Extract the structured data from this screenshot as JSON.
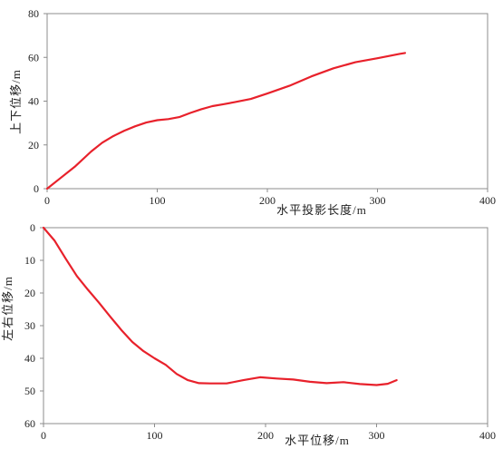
{
  "chart_data": [
    {
      "type": "line",
      "title": "",
      "xlabel": "水平投影长度/m",
      "ylabel": "上下位移/m",
      "xlim": [
        0,
        400
      ],
      "ylim": [
        0,
        80
      ],
      "xticks": [
        0,
        100,
        200,
        300,
        400
      ],
      "yticks": [
        0,
        20,
        40,
        60,
        80
      ],
      "y_reversed": false,
      "grid": false,
      "legend": "none",
      "series": [
        {
          "color": "#e8212b",
          "x": [
            0,
            10,
            25,
            40,
            50,
            60,
            70,
            80,
            90,
            100,
            110,
            120,
            130,
            140,
            150,
            160,
            170,
            185,
            200,
            220,
            240,
            260,
            280,
            300,
            310,
            320,
            325
          ],
          "y": [
            0,
            4,
            10,
            17,
            21,
            24,
            26.5,
            28.5,
            30.2,
            31.3,
            31.8,
            32.7,
            34.6,
            36.3,
            37.7,
            38.6,
            39.5,
            41,
            43.5,
            47,
            51.3,
            55,
            57.8,
            59.6,
            60.6,
            61.6,
            62
          ]
        }
      ]
    },
    {
      "type": "line",
      "title": "",
      "xlabel": "水平位移/m",
      "ylabel": "左右位移/m",
      "xlim": [
        0,
        400
      ],
      "ylim": [
        0,
        60
      ],
      "xticks": [
        0,
        100,
        200,
        300,
        400
      ],
      "yticks": [
        0,
        10,
        20,
        30,
        40,
        50,
        60
      ],
      "y_reversed": true,
      "grid": false,
      "legend": "none",
      "series": [
        {
          "color": "#e8212b",
          "x": [
            0,
            10,
            20,
            30,
            40,
            50,
            60,
            70,
            80,
            90,
            100,
            110,
            120,
            130,
            140,
            150,
            165,
            180,
            195,
            210,
            225,
            240,
            255,
            270,
            285,
            300,
            310,
            318
          ],
          "y": [
            0,
            4,
            9.5,
            14.8,
            19,
            23,
            27.2,
            31.3,
            35,
            37.8,
            40,
            42,
            44.8,
            46.7,
            47.6,
            47.7,
            47.7,
            46.7,
            45.8,
            46.2,
            46.5,
            47.2,
            47.6,
            47.3,
            47.9,
            48.2,
            47.8,
            46.7
          ]
        }
      ]
    }
  ]
}
